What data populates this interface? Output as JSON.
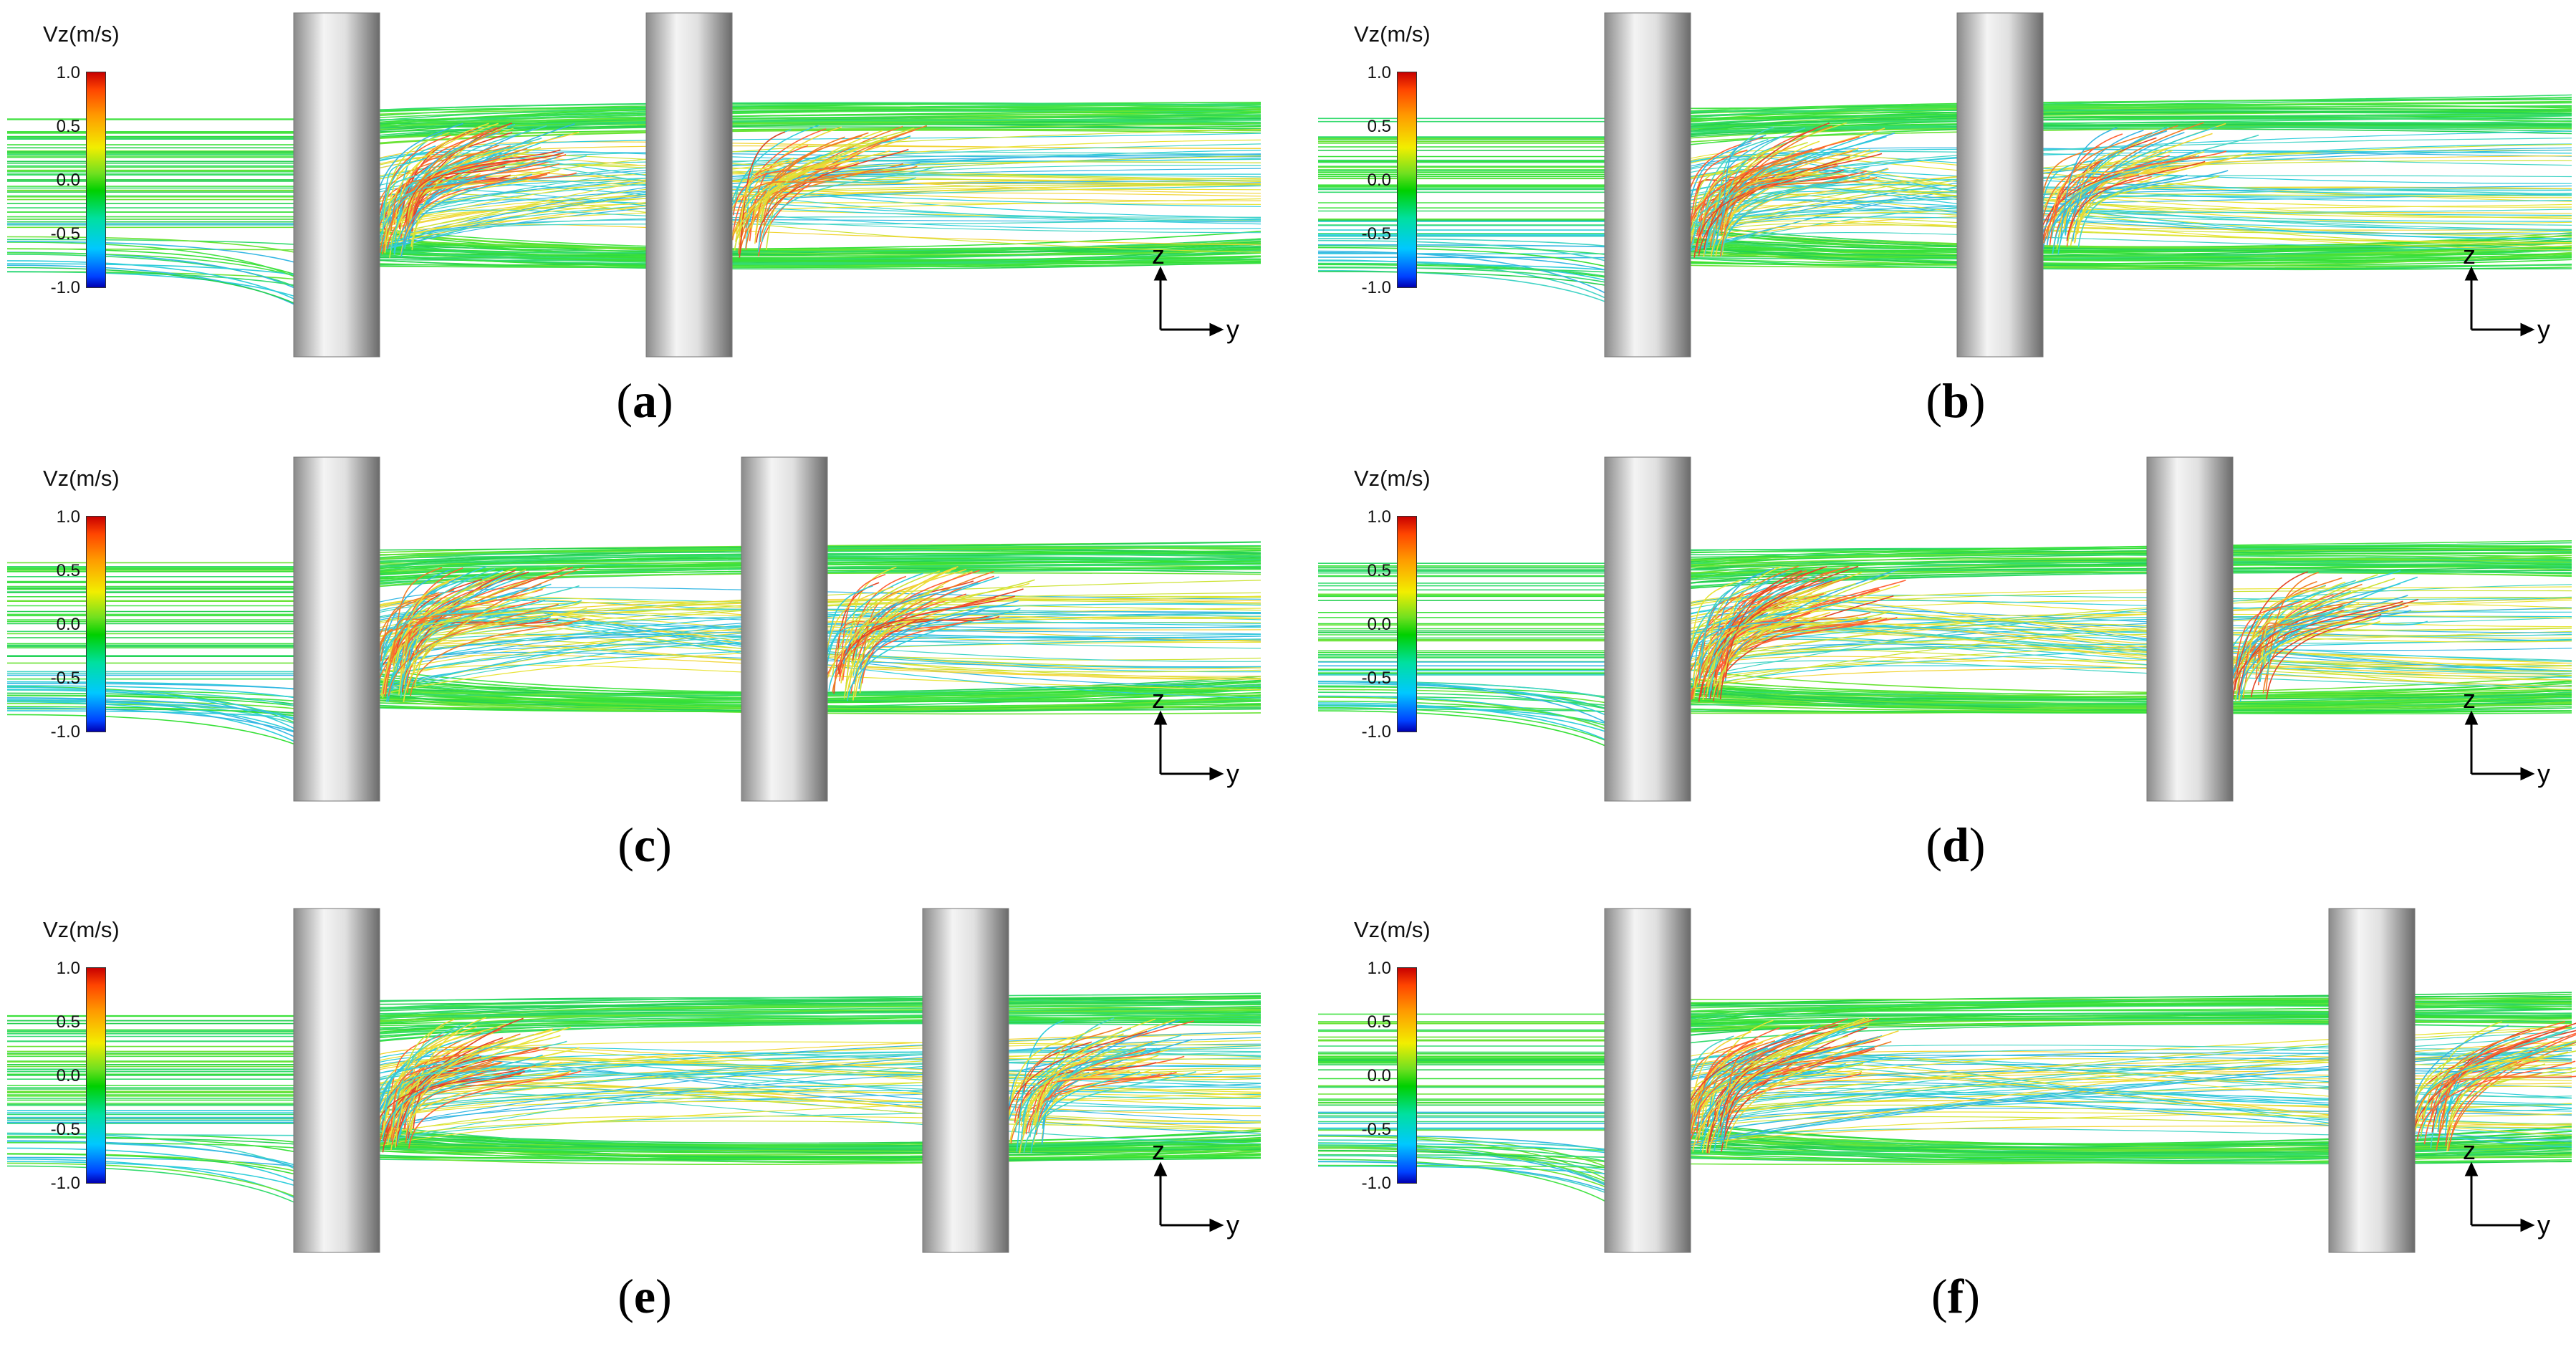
{
  "colorbar": {
    "title": "Vz(m/s)",
    "ticks": [
      "1.0",
      "0.5",
      "0.0",
      "-0.5",
      "-1.0"
    ]
  },
  "axes": {
    "vertical": "z",
    "horizontal": "y"
  },
  "panels": [
    {
      "id": "a",
      "cyl2_y": 0.39
    },
    {
      "id": "b",
      "cyl2_y": 0.39
    },
    {
      "id": "c",
      "cyl2_y": 0.5
    },
    {
      "id": "d",
      "cyl2_y": 0.61
    },
    {
      "id": "e",
      "cyl2_y": 0.71
    },
    {
      "id": "f",
      "cyl2_y": 0.82
    }
  ],
  "colors": {
    "background": "#ffffff",
    "streamline_green": "#22dd22",
    "streamline_cyan": "#18c8d8",
    "streamline_yellow": "#e6e020",
    "streamline_red": "#e03010"
  }
}
